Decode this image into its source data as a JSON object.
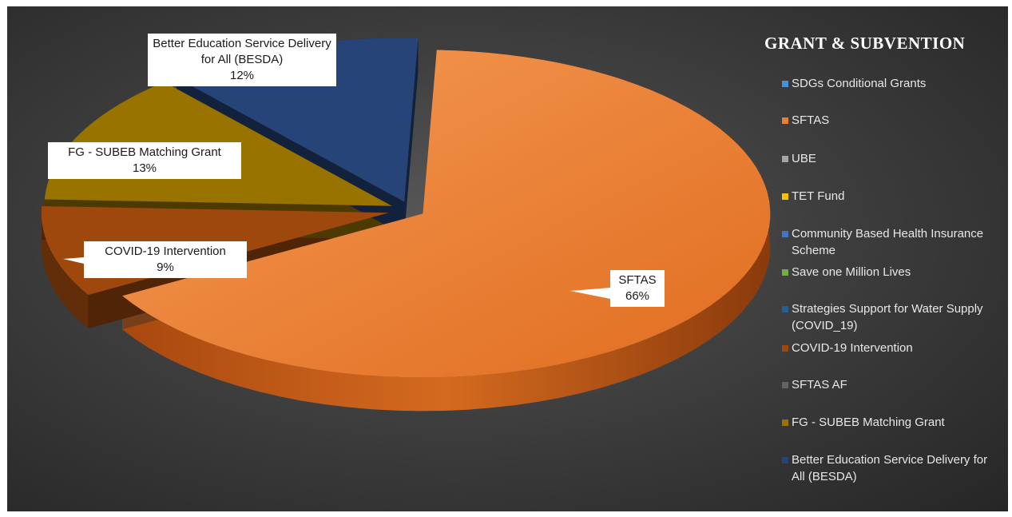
{
  "chart_data": {
    "type": "pie",
    "title": "GRANT & SUBVENTION",
    "style": "3d-exploded",
    "legend_position": "right",
    "slices": [
      {
        "name": "SDGs Conditional Grants",
        "value": 0,
        "color": "#4a90d9"
      },
      {
        "name": "SFTAS",
        "value": 66,
        "color": "#ed7d31"
      },
      {
        "name": "UBE",
        "value": 0,
        "color": "#a5a5a5"
      },
      {
        "name": "TET Fund",
        "value": 0,
        "color": "#ffc000"
      },
      {
        "name": "Community Based Health Insurance Scheme",
        "value": 0,
        "color": "#4472c4"
      },
      {
        "name": "Save one Million Lives",
        "value": 0,
        "color": "#70ad47"
      },
      {
        "name": "Strategies Support for Water Supply (COVID_19)",
        "value": 0,
        "color": "#255e91"
      },
      {
        "name": "COVID-19 Intervention",
        "value": 9,
        "color": "#9e480e"
      },
      {
        "name": "SFTAS AF",
        "value": 0,
        "color": "#636363"
      },
      {
        "name": "FG - SUBEB Matching Grant",
        "value": 13,
        "color": "#997300"
      },
      {
        "name": "Better Education Service Delivery for All (BESDA)",
        "value": 12,
        "color": "#264478"
      }
    ],
    "data_labels": [
      {
        "name": "SFTAS",
        "pct": "66%"
      },
      {
        "name": "COVID-19 Intervention",
        "pct": "9%"
      },
      {
        "name": "FG - SUBEB Matching Grant",
        "pct": "13%"
      },
      {
        "name": "Better Education Service Delivery for All (BESDA)",
        "pct": "12%"
      }
    ]
  }
}
